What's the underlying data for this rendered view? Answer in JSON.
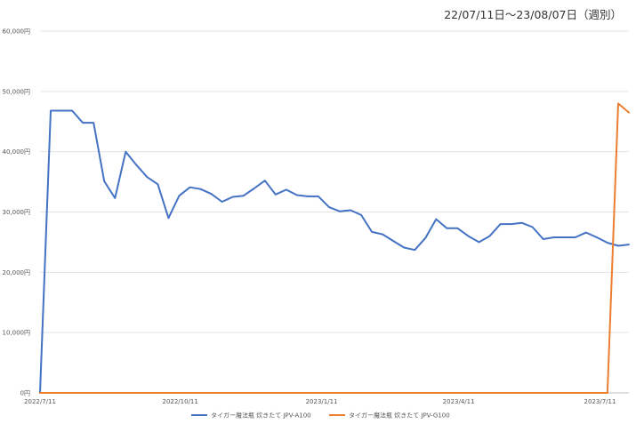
{
  "chart_data": {
    "type": "line",
    "title": "",
    "subtitle": "22/07/11日～23/08/07日（週別）",
    "xlabel": "",
    "ylabel": "",
    "ylim": [
      0,
      60000
    ],
    "yticks": [
      "0円",
      "10,000円",
      "20,000円",
      "30,000円",
      "40,000円",
      "50,000円",
      "60,000円"
    ],
    "ytick_values": [
      0,
      10000,
      20000,
      30000,
      40000,
      50000,
      60000
    ],
    "xticks": [
      "2022/7/11",
      "2022/10/11",
      "2023/1/11",
      "2023/4/11",
      "2023/7/11"
    ],
    "xtick_weeks": [
      0,
      13.1,
      26.3,
      39.1,
      52.3
    ],
    "weeks": 56,
    "grid": "horizontal",
    "legend_position": "bottom",
    "series": [
      {
        "name": "タイガー魔法瓶 炊きたて JPV-A100",
        "color": "#4472C4",
        "values": [
          0,
          46800,
          46800,
          46800,
          44800,
          44800,
          35100,
          32300,
          40000,
          37800,
          35800,
          34600,
          29000,
          32700,
          34100,
          33800,
          33000,
          31700,
          32500,
          32700,
          33900,
          35200,
          32900,
          33700,
          32800,
          32600,
          32600,
          30800,
          30100,
          30300,
          29500,
          26700,
          26300,
          25200,
          24100,
          23700,
          25700,
          28800,
          27300,
          27300,
          26000,
          25000,
          26000,
          28000,
          28000,
          28200,
          27500,
          25500,
          25800,
          25800,
          25800,
          26600,
          25800,
          24900,
          24400,
          24600
        ]
      },
      {
        "name": "タイガー魔法瓶 炊きたて JPV-G100",
        "color": "#ED7D31",
        "values": [
          0,
          0,
          0,
          0,
          0,
          0,
          0,
          0,
          0,
          0,
          0,
          0,
          0,
          0,
          0,
          0,
          0,
          0,
          0,
          0,
          0,
          0,
          0,
          0,
          0,
          0,
          0,
          0,
          0,
          0,
          0,
          0,
          0,
          0,
          0,
          0,
          0,
          0,
          0,
          0,
          0,
          0,
          0,
          0,
          0,
          0,
          0,
          0,
          0,
          0,
          0,
          0,
          0,
          0,
          48000,
          46500
        ]
      }
    ]
  }
}
